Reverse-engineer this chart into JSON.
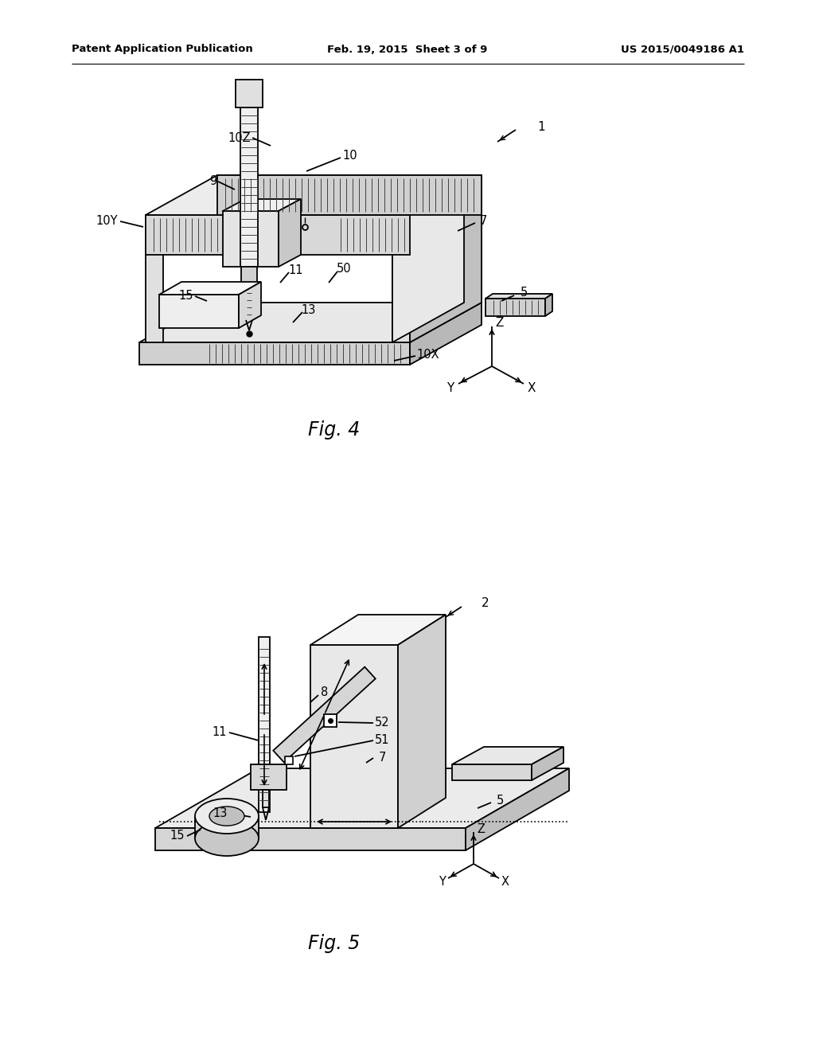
{
  "title_left": "Patent Application Publication",
  "title_center": "Feb. 19, 2015  Sheet 3 of 9",
  "title_right": "US 2015/0049186 A1",
  "fig4_label": "Fig. 4",
  "fig5_label": "Fig. 5",
  "bg_color": "#ffffff",
  "lw": 1.3
}
